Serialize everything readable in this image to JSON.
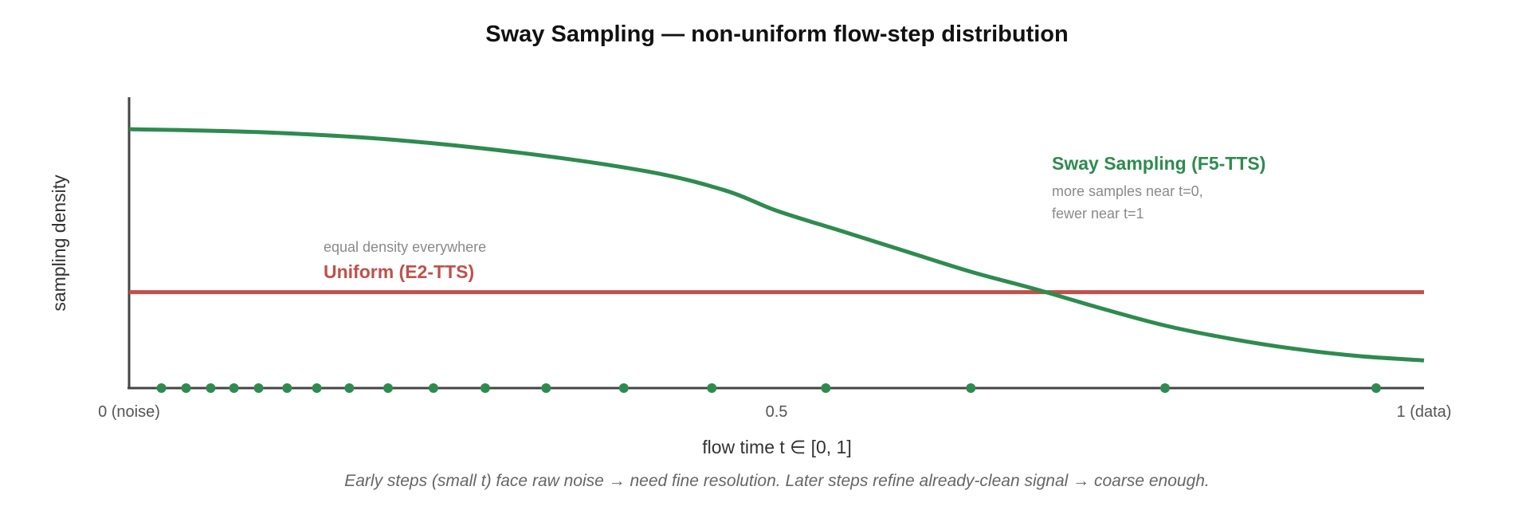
{
  "chart_data": {
    "type": "line",
    "title": "Sway Sampling — non-uniform flow-step distribution",
    "xlabel": "flow time t ∈ [0, 1]",
    "ylabel": "sampling density",
    "xlim": [
      0,
      1
    ],
    "ylim": [
      0,
      1
    ],
    "x_ticks": [
      {
        "value": 0,
        "label": "0 (noise)"
      },
      {
        "value": 0.5,
        "label": "0.5"
      },
      {
        "value": 1,
        "label": "1 (data)"
      }
    ],
    "grid": false,
    "colors": {
      "sway": "#2e8b4f",
      "uniform": "#c0504a",
      "axis": "#444444"
    },
    "series": [
      {
        "name": "Sway Sampling (F5-TTS)",
        "color": "#2e8b4f",
        "x": [
          0,
          0.1,
          0.2,
          0.3,
          0.4,
          0.46,
          0.5,
          0.55,
          0.6,
          0.65,
          0.7,
          0.75,
          0.8,
          0.85,
          0.9,
          0.95,
          1.0
        ],
        "y": [
          0.89,
          0.88,
          0.855,
          0.81,
          0.745,
          0.68,
          0.61,
          0.54,
          0.47,
          0.4,
          0.34,
          0.275,
          0.215,
          0.17,
          0.135,
          0.11,
          0.095
        ]
      },
      {
        "name": "Uniform (E2-TTS)",
        "color": "#c0504a",
        "x": [
          0,
          1
        ],
        "y": [
          0.33,
          0.33
        ]
      }
    ],
    "sample_points_t": [
      0.025,
      0.044,
      0.063,
      0.081,
      0.1,
      0.122,
      0.145,
      0.17,
      0.2,
      0.235,
      0.275,
      0.322,
      0.382,
      0.45,
      0.538,
      0.65,
      0.8,
      0.963
    ],
    "annotations": {
      "sway": {
        "title": "Sway Sampling (F5-TTS)",
        "lines": [
          "more samples near t=0,",
          "fewer near t=1"
        ]
      },
      "uniform": {
        "title": "Uniform (E2-TTS)",
        "note": "equal density everywhere"
      }
    },
    "caption": "Early steps (small t) face raw noise → need fine resolution. Later steps refine already-clean signal → coarse enough."
  }
}
